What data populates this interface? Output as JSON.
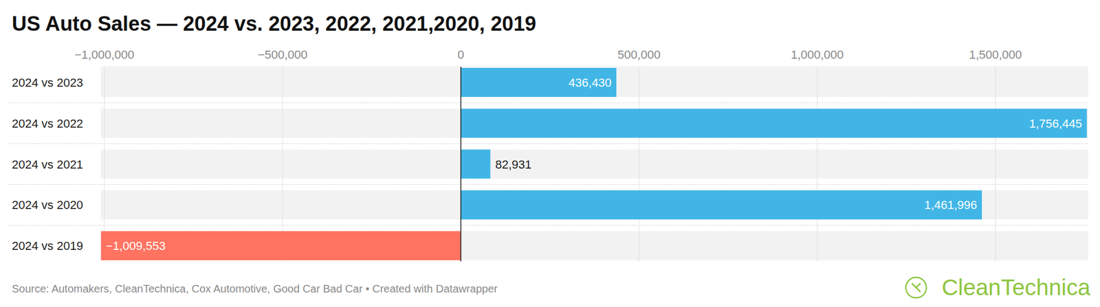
{
  "chart_data": {
    "type": "bar",
    "orientation": "horizontal",
    "title": "US Auto Sales — 2024 vs. 2023, 2022, 2021,2020, 2019",
    "categories": [
      "2024 vs 2023",
      "2024 vs 2022",
      "2024 vs 2021",
      "2024 vs 2020",
      "2024 vs 2019"
    ],
    "values": [
      436430,
      1756445,
      82931,
      1461996,
      -1009553
    ],
    "value_labels": [
      "436,430",
      "1,756,445",
      "82,931",
      "1,461,996",
      "−1,009,553"
    ],
    "colors": [
      "#41b6e6",
      "#41b6e6",
      "#41b6e6",
      "#41b6e6",
      "#ff7360"
    ],
    "xlim": [
      -1010000,
      1760000
    ],
    "xticks": [
      {
        "value": -1000000,
        "label": "−1,000,000"
      },
      {
        "value": -500000,
        "label": "−500,000"
      },
      0,
      {
        "value": 500000,
        "label": "500,000"
      },
      {
        "value": 1000000,
        "label": "1,000,000"
      },
      {
        "value": 1500000,
        "label": "1,500,000"
      }
    ],
    "grid": true,
    "data_labels": true,
    "source": "Source: Automakers, CleanTechnica, Cox Automotive, Good Car Bad Car • Created with Datawrapper",
    "logo": "CleanTechnica"
  }
}
